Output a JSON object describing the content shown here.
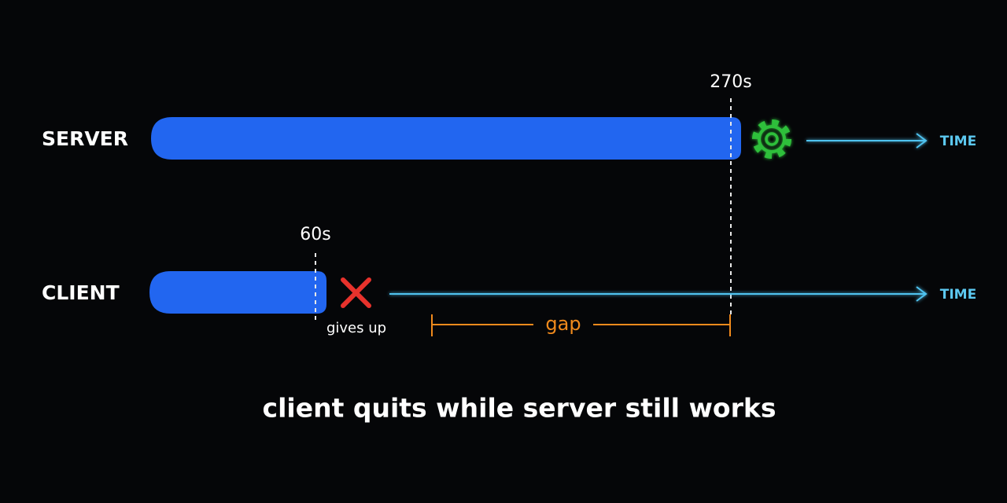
{
  "rows": [
    {
      "label": "SERVER",
      "time": "270s",
      "axis": "TIME"
    },
    {
      "label": "CLIENT",
      "time": "60s",
      "note": "gives up",
      "axis": "TIME"
    }
  ],
  "gap": "gap",
  "caption": "client quits while server still works"
}
